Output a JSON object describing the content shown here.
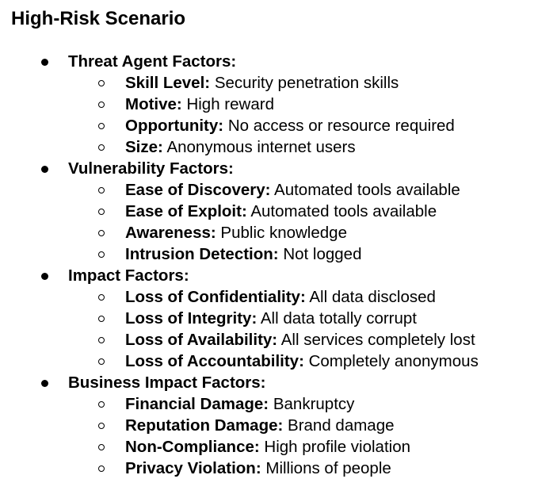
{
  "title": "High-Risk Scenario",
  "sections": [
    {
      "heading": "Threat Agent Factors:",
      "items": [
        {
          "label": "Skill Level:",
          "value": "Security penetration skills"
        },
        {
          "label": "Motive:",
          "value": "High reward"
        },
        {
          "label": "Opportunity:",
          "value": "No access or resource required"
        },
        {
          "label": "Size:",
          "value": "Anonymous internet users"
        }
      ]
    },
    {
      "heading": "Vulnerability Factors:",
      "items": [
        {
          "label": "Ease of Discovery:",
          "value": "Automated tools available"
        },
        {
          "label": "Ease of Exploit:",
          "value": "Automated tools available"
        },
        {
          "label": "Awareness:",
          "value": "Public knowledge"
        },
        {
          "label": "Intrusion Detection:",
          "value": "Not logged"
        }
      ]
    },
    {
      "heading": "Impact Factors:",
      "items": [
        {
          "label": "Loss of Confidentiality:",
          "value": "All data disclosed"
        },
        {
          "label": "Loss of Integrity:",
          "value": "All data totally corrupt"
        },
        {
          "label": "Loss of Availability:",
          "value": "All services completely lost"
        },
        {
          "label": "Loss of Accountability:",
          "value": "Completely anonymous"
        }
      ]
    },
    {
      "heading": "Business Impact Factors:",
      "items": [
        {
          "label": "Financial Damage:",
          "value": "Bankruptcy"
        },
        {
          "label": "Reputation Damage:",
          "value": "Brand damage"
        },
        {
          "label": "Non-Compliance:",
          "value": "High profile violation"
        },
        {
          "label": "Privacy Violation:",
          "value": "Millions of people"
        }
      ]
    }
  ]
}
